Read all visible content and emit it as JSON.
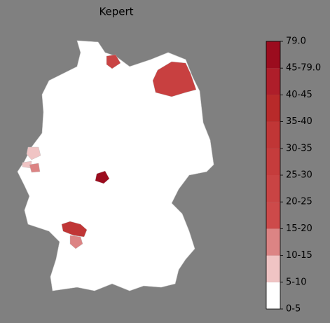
{
  "title": "Kepert",
  "colorbar": {
    "labels": [
      "0-5",
      "5-10",
      "10-15",
      "15-20",
      "20-25",
      "25-30",
      "30-35",
      "35-40",
      "40-45",
      "45-79.0",
      "79.0"
    ],
    "colors": [
      "#ffffff",
      "#f0c4c4",
      "#dc8484",
      "#cd4a4a",
      "#c94444",
      "#c53c3c",
      "#c03636",
      "#b82a2a",
      "#ae1e2a",
      "#9b0c1e"
    ]
  }
}
